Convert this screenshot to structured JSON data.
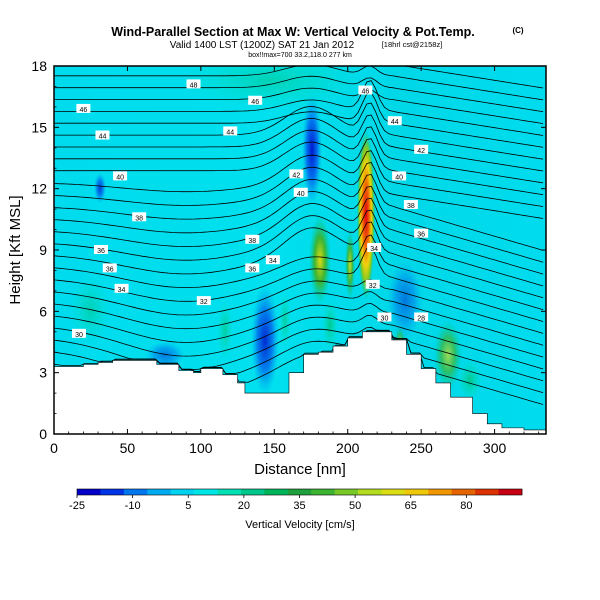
{
  "header": {
    "title": "Wind-Parallel Section at Max W: Vertical Velocity & Pot.Temp.",
    "title_unit": "(C)",
    "subtitle": "Valid 1400 LST (1200Z) SAT 21 Jan 2012",
    "subtitle_small": "[18hrl cst@2158z]",
    "subtitle2": "box!!max=700 33.2,118.0 277 km"
  },
  "colorbar": {
    "label": "Vertical Velocity [cm/s]",
    "tick_labels": [
      "-25",
      "-10",
      "5",
      "20",
      "35",
      "50",
      "65",
      "80"
    ],
    "colors": [
      "#0000c8",
      "#0033e6",
      "#0077ee",
      "#00aaee",
      "#00d2f0",
      "#00e6e6",
      "#00e0b4",
      "#00c88c",
      "#00b45a",
      "#1ea03c",
      "#3cb432",
      "#78c828",
      "#b4dc1e",
      "#dcdc14",
      "#f0c80a",
      "#f09600",
      "#e66400",
      "#dc3200",
      "#c80014"
    ]
  },
  "chart_data": {
    "type": "heatmap",
    "title": "Wind-Parallel Section at Max W: Vertical Velocity & Pot.Temp.",
    "xlabel": "Distance [nm]",
    "ylabel": "Height [Kft MSL]",
    "xlim": [
      0,
      335
    ],
    "ylim": [
      0,
      18
    ],
    "x_ticks": [
      0,
      50,
      100,
      150,
      200,
      250,
      300
    ],
    "y_ticks": [
      0,
      3,
      6,
      9,
      12,
      15,
      18
    ],
    "colorbar_range": [
      -25,
      95
    ],
    "terrain": {
      "x": [
        0,
        10,
        20,
        30,
        40,
        55,
        70,
        85,
        95,
        100,
        115,
        125,
        130,
        150,
        160,
        170,
        180,
        190,
        200,
        210,
        220,
        230,
        240,
        250,
        260,
        270,
        285,
        295,
        305,
        320,
        335
      ],
      "height": [
        3.3,
        3.3,
        3.4,
        3.5,
        3.6,
        3.6,
        3.4,
        3.1,
        3.0,
        3.2,
        2.9,
        2.5,
        2.0,
        2.0,
        3.0,
        3.9,
        4.0,
        4.3,
        4.7,
        5.0,
        5.0,
        4.6,
        3.9,
        3.2,
        2.5,
        1.8,
        1.0,
        0.5,
        0.3,
        0.2,
        0.1
      ]
    },
    "theta_labels": [
      {
        "value": "48",
        "x": 95,
        "z": 17.1
      },
      {
        "value": "46",
        "x": 20,
        "z": 15.9
      },
      {
        "value": "46",
        "x": 137,
        "z": 16.3
      },
      {
        "value": "46",
        "x": 212,
        "z": 16.8
      },
      {
        "value": "44",
        "x": 33,
        "z": 14.6
      },
      {
        "value": "44",
        "x": 120,
        "z": 14.8
      },
      {
        "value": "44",
        "x": 232,
        "z": 15.3
      },
      {
        "value": "42",
        "x": 165,
        "z": 12.7
      },
      {
        "value": "42",
        "x": 250,
        "z": 13.9
      },
      {
        "value": "40",
        "x": 45,
        "z": 12.6
      },
      {
        "value": "40",
        "x": 168,
        "z": 11.8
      },
      {
        "value": "40",
        "x": 235,
        "z": 12.6
      },
      {
        "value": "38",
        "x": 58,
        "z": 10.6
      },
      {
        "value": "38",
        "x": 135,
        "z": 9.5
      },
      {
        "value": "38",
        "x": 243,
        "z": 11.2
      },
      {
        "value": "36",
        "x": 32,
        "z": 9.0
      },
      {
        "value": "36",
        "x": 38,
        "z": 8.1
      },
      {
        "value": "36",
        "x": 135,
        "z": 8.1
      },
      {
        "value": "36",
        "x": 250,
        "z": 9.8
      },
      {
        "value": "34",
        "x": 46,
        "z": 7.1
      },
      {
        "value": "34",
        "x": 149,
        "z": 8.5
      },
      {
        "value": "34",
        "x": 218,
        "z": 9.1
      },
      {
        "value": "32",
        "x": 102,
        "z": 6.5
      },
      {
        "value": "32",
        "x": 217,
        "z": 7.3
      },
      {
        "value": "30",
        "x": 17,
        "z": 4.9
      },
      {
        "value": "30",
        "x": 225,
        "z": 5.7
      },
      {
        "value": "28",
        "x": 250,
        "z": 5.7
      }
    ],
    "notes": "Vertical velocity (color) and potential temperature contours (C) along a wind-parallel cross-section; strong updraft near 210-215 nm reaching ~80-95 cm/s between 6 and 14 kft."
  }
}
